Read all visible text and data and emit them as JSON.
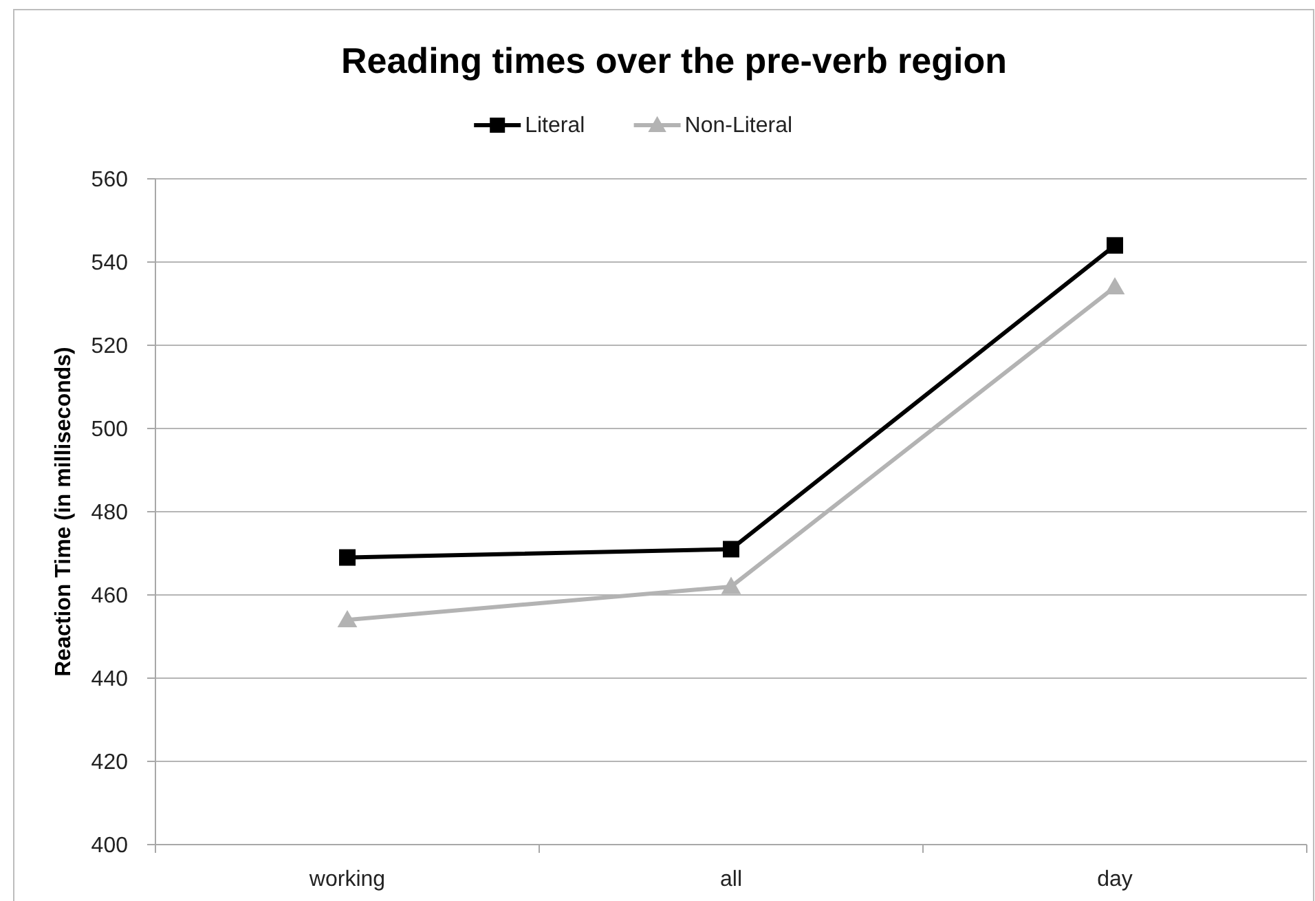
{
  "chart_data": {
    "type": "line",
    "title": "Reading times over the pre-verb region",
    "ylabel": "Reaction Time (in milliseconds)",
    "categories": [
      "working",
      "all",
      "day"
    ],
    "series": [
      {
        "name": "Literal",
        "color": "#000000",
        "marker": "square",
        "values": [
          469,
          471,
          544
        ]
      },
      {
        "name": "Non-Literal",
        "color": "#b3b3b3",
        "marker": "triangle",
        "values": [
          454,
          462,
          534
        ]
      }
    ],
    "ylim": [
      400,
      560
    ],
    "yticks": [
      400,
      420,
      440,
      460,
      480,
      500,
      520,
      540,
      560
    ],
    "grid": "y",
    "legend": "top",
    "line_style": "solid"
  }
}
